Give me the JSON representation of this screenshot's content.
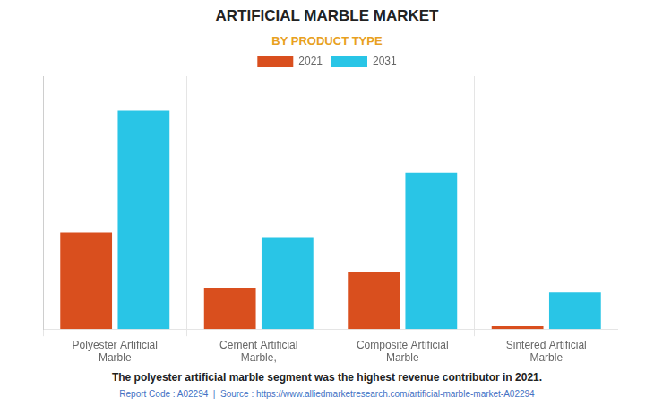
{
  "chart_data": {
    "type": "bar",
    "title": "ARTIFICIAL MARBLE MARKET",
    "subtitle": "BY PRODUCT TYPE",
    "categories": [
      "Polyester Artificial\nMarble",
      "Cement Artificial\nMarble,",
      "Composite Artificial\nMarble",
      "Sintered Artificial\nMarble"
    ],
    "series": [
      {
        "name": "2021",
        "color": "#d94f1e",
        "values": [
          4.2,
          1.8,
          2.5,
          0.12
        ]
      },
      {
        "name": "2031",
        "color": "#29c5e6",
        "values": [
          9.5,
          4.0,
          6.8,
          1.6
        ]
      }
    ],
    "ylim": [
      0,
      11
    ],
    "yticks": [],
    "grid": false,
    "legend": "top",
    "tick_labels": "x",
    "annotations": [
      "The polyester artificial marble segment was the highest revenue contributor in 2021.",
      "Report Code : A02294  |  Source : https://www.alliedmarketresearch.com/artificial-marble-market-A02294"
    ]
  }
}
